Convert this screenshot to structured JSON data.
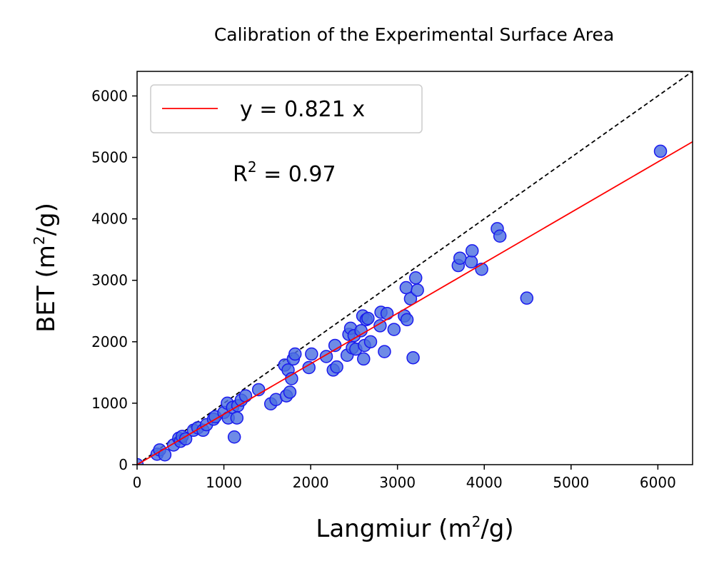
{
  "chart_data": {
    "type": "scatter",
    "title": "Calibration of the Experimental Surface Area",
    "xlabel": {
      "pre": "Langmiur (m",
      "sup": "2",
      "post": "/g)"
    },
    "ylabel": {
      "pre": "BET (m",
      "sup": "2",
      "post": "/g)"
    },
    "xlim": [
      0,
      6400
    ],
    "ylim": [
      0,
      6400
    ],
    "xticks": [
      0,
      1000,
      2000,
      3000,
      4000,
      5000,
      6000
    ],
    "yticks": [
      0,
      1000,
      2000,
      3000,
      4000,
      5000,
      6000
    ],
    "grid": false,
    "legend": {
      "placement": "top-left",
      "label": "y = 0.821 x"
    },
    "annotation": {
      "pre": "R",
      "sup": "2",
      "post": " = 0.97"
    },
    "fit_slope": 0.821,
    "colors": {
      "fit": "#ff0000",
      "identity": "#000000",
      "marker_fill": "#4a6ee0",
      "marker_edge": "#1a1aee"
    },
    "points": [
      [
        0,
        0
      ],
      [
        230,
        170
      ],
      [
        260,
        240
      ],
      [
        320,
        160
      ],
      [
        420,
        320
      ],
      [
        480,
        430
      ],
      [
        500,
        380
      ],
      [
        520,
        460
      ],
      [
        560,
        420
      ],
      [
        650,
        560
      ],
      [
        700,
        600
      ],
      [
        760,
        560
      ],
      [
        800,
        650
      ],
      [
        880,
        740
      ],
      [
        900,
        780
      ],
      [
        1000,
        850
      ],
      [
        1040,
        1000
      ],
      [
        1050,
        760
      ],
      [
        1100,
        930
      ],
      [
        1120,
        450
      ],
      [
        1150,
        760
      ],
      [
        1160,
        960
      ],
      [
        1200,
        1050
      ],
      [
        1250,
        1120
      ],
      [
        1400,
        1220
      ],
      [
        1540,
        990
      ],
      [
        1600,
        1060
      ],
      [
        1700,
        1620
      ],
      [
        1720,
        1120
      ],
      [
        1740,
        1540
      ],
      [
        1760,
        1180
      ],
      [
        1780,
        1400
      ],
      [
        1800,
        1720
      ],
      [
        1820,
        1800
      ],
      [
        1980,
        1580
      ],
      [
        2010,
        1800
      ],
      [
        2180,
        1760
      ],
      [
        2260,
        1540
      ],
      [
        2280,
        1940
      ],
      [
        2300,
        1590
      ],
      [
        2420,
        1780
      ],
      [
        2440,
        2120
      ],
      [
        2460,
        2220
      ],
      [
        2480,
        1900
      ],
      [
        2500,
        2100
      ],
      [
        2520,
        1880
      ],
      [
        2580,
        2180
      ],
      [
        2600,
        2420
      ],
      [
        2610,
        1720
      ],
      [
        2620,
        1940
      ],
      [
        2640,
        2360
      ],
      [
        2660,
        2380
      ],
      [
        2690,
        2000
      ],
      [
        2800,
        2260
      ],
      [
        2810,
        2480
      ],
      [
        2850,
        1840
      ],
      [
        2880,
        2460
      ],
      [
        2960,
        2200
      ],
      [
        3080,
        2420
      ],
      [
        3100,
        2880
      ],
      [
        3110,
        2360
      ],
      [
        3150,
        2700
      ],
      [
        3180,
        1740
      ],
      [
        3210,
        3040
      ],
      [
        3230,
        2840
      ],
      [
        3700,
        3240
      ],
      [
        3720,
        3360
      ],
      [
        3850,
        3300
      ],
      [
        3860,
        3480
      ],
      [
        3970,
        3180
      ],
      [
        4150,
        3840
      ],
      [
        4180,
        3720
      ],
      [
        4490,
        2710
      ],
      [
        6030,
        5100
      ]
    ]
  }
}
